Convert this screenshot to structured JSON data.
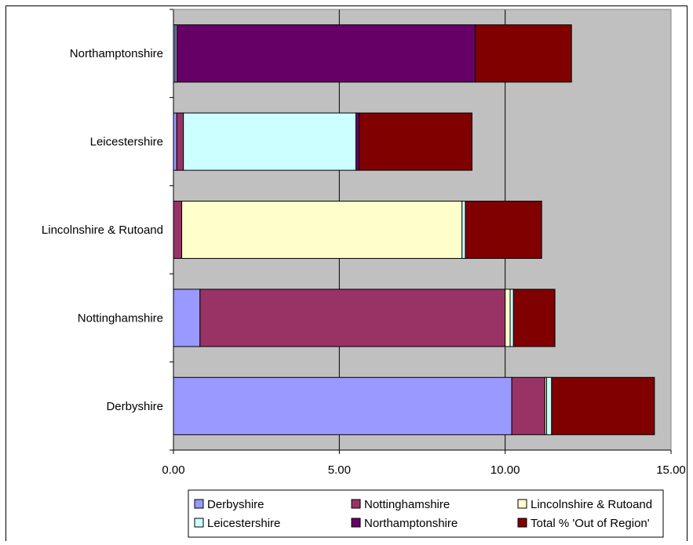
{
  "chart_data": {
    "type": "bar",
    "orientation": "horizontal",
    "stacked": true,
    "title": "",
    "xlabel": "",
    "ylabel": "",
    "xlim": [
      0,
      15
    ],
    "x_ticks": [
      "0.00",
      "5.00",
      "10.00",
      "15.00"
    ],
    "x_tick_values": [
      0,
      5,
      10,
      15
    ],
    "grid": true,
    "legend_position": "bottom",
    "categories": [
      "Derbyshire",
      "Nottinghamshire",
      "Lincolnshire & Rutoand",
      "Leicestershire",
      "Northamptonshire"
    ],
    "series": [
      {
        "name": "Derbyshire",
        "color": "#9999ff",
        "values": [
          10.2,
          0.8,
          0.0,
          0.1,
          0.05
        ]
      },
      {
        "name": "Nottinghamshire",
        "color": "#993366",
        "values": [
          1.0,
          9.2,
          0.25,
          0.2,
          0.0
        ]
      },
      {
        "name": "Lincolnshire & Rutoand",
        "color": "#ffffcc",
        "values": [
          0.05,
          0.15,
          8.45,
          0.0,
          0.0
        ]
      },
      {
        "name": "Leicestershire",
        "color": "#ccffff",
        "values": [
          0.15,
          0.1,
          0.1,
          5.2,
          0.05
        ]
      },
      {
        "name": "Northamptonshire",
        "color": "#660066",
        "values": [
          0.0,
          0.0,
          0.0,
          0.1,
          9.0
        ]
      },
      {
        "name": "Total % 'Out of Region'",
        "color": "#800000",
        "values": [
          3.1,
          1.25,
          2.3,
          3.4,
          2.9
        ]
      }
    ]
  }
}
